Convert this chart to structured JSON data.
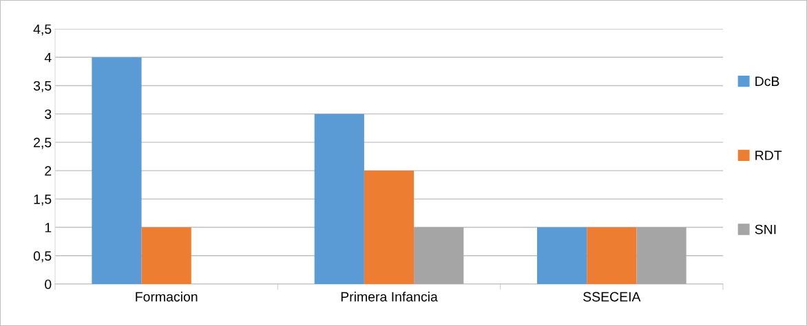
{
  "chart_data": {
    "type": "bar",
    "categories": [
      "Formacion",
      "Primera Infancia",
      "SSECEIA"
    ],
    "series": [
      {
        "name": "DcB",
        "color": "#5b9bd5",
        "values": [
          4,
          3,
          1
        ]
      },
      {
        "name": "RDT",
        "color": "#ed7d31",
        "values": [
          1,
          2,
          1
        ]
      },
      {
        "name": "SNI",
        "color": "#a5a5a5",
        "values": [
          0,
          1,
          1
        ]
      }
    ],
    "ylim": [
      0,
      4.5
    ],
    "yticks": [
      0,
      {
        "value": 0.5,
        "label": "0,5"
      },
      1,
      {
        "value": 1.5,
        "label": "1,5"
      },
      2,
      {
        "value": 2.5,
        "label": "2,5"
      },
      3,
      {
        "value": 3.5,
        "label": "3,5"
      },
      4,
      {
        "value": 4.5,
        "label": "4,5"
      }
    ],
    "grid": "y",
    "legend": "right"
  }
}
